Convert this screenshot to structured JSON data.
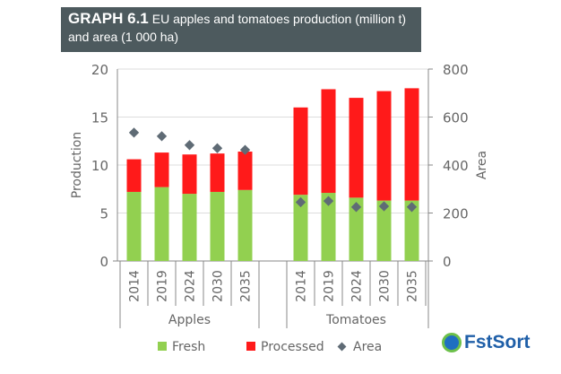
{
  "header": {
    "label": "GRAPH 6.1",
    "title": "EU apples and tomatoes production (million t) and area (1 000 ha)"
  },
  "logo": {
    "text": "FstSort"
  },
  "chart_data": {
    "type": "bar",
    "stacked": true,
    "groups": [
      "Apples",
      "Tomatoes"
    ],
    "categories": [
      "2014",
      "2019",
      "2024",
      "2030",
      "2035"
    ],
    "ylabel": "Production",
    "ylim": [
      0,
      20
    ],
    "yticks": [
      "0",
      "5",
      "10",
      "15",
      "20"
    ],
    "y2label": "Area",
    "y2lim": [
      0,
      800
    ],
    "y2ticks": [
      "0",
      "200",
      "400",
      "600",
      "800"
    ],
    "legend": [
      "Fresh",
      "Processed",
      "Area"
    ],
    "colors": {
      "Fresh": "#92d050",
      "Processed": "#ff1a1a",
      "Area": "#5f6b75"
    },
    "series": {
      "Apples": {
        "Fresh": [
          7.2,
          7.7,
          7.0,
          7.2,
          7.4
        ],
        "Processed": [
          3.4,
          3.6,
          4.1,
          4.0,
          4.0
        ],
        "Area": [
          535,
          520,
          483,
          470,
          463
        ]
      },
      "Tomatoes": {
        "Fresh": [
          6.9,
          7.1,
          6.6,
          6.3,
          6.3
        ],
        "Processed": [
          9.1,
          10.8,
          10.4,
          11.4,
          11.7
        ],
        "Area": [
          245,
          250,
          225,
          228,
          225
        ]
      }
    }
  }
}
